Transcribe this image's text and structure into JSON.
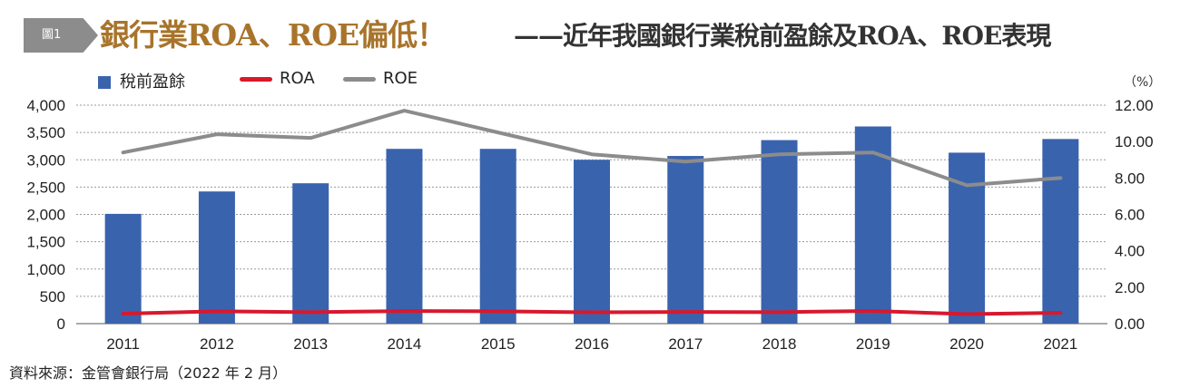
{
  "header": {
    "figure_label": "圖1",
    "title": "銀行業ROA、ROE偏低！",
    "subtitle": "——近年我國銀行業稅前盈餘及ROA、ROE表現"
  },
  "unit_right": "（%）",
  "source": "資料來源：金管會銀行局（2022 年 2 月）",
  "colors": {
    "bar": "#3a63ae",
    "roa": "#d8182e",
    "roe": "#8c8c8c",
    "title": "#a8742b",
    "badge": "#8c8c8c"
  },
  "chart_data": {
    "type": "bar",
    "categories": [
      "2011",
      "2012",
      "2013",
      "2014",
      "2015",
      "2016",
      "2017",
      "2018",
      "2019",
      "2020",
      "2021"
    ],
    "series": [
      {
        "name": "稅前盈餘",
        "type": "bar",
        "axis": "left",
        "values": [
          2010,
          2420,
          2570,
          3200,
          3200,
          3000,
          3070,
          3360,
          3610,
          3130,
          3380
        ]
      },
      {
        "name": "ROA",
        "type": "line",
        "axis": "right",
        "values": [
          0.55,
          0.68,
          0.63,
          0.69,
          0.68,
          0.62,
          0.64,
          0.63,
          0.7,
          0.52,
          0.6
        ]
      },
      {
        "name": "ROE",
        "type": "line",
        "axis": "right",
        "values": [
          9.4,
          10.4,
          10.2,
          11.7,
          10.5,
          9.3,
          8.9,
          9.3,
          9.4,
          7.6,
          8.0
        ]
      }
    ],
    "left_axis": {
      "ylim": [
        0,
        4000
      ],
      "ticks": [
        "0",
        "500",
        "1,000",
        "1,500",
        "2,000",
        "2,500",
        "3,000",
        "3,500",
        "4,000"
      ]
    },
    "right_axis": {
      "ylim": [
        0,
        12
      ],
      "ticks": [
        "0.00",
        "2.00",
        "4.00",
        "6.00",
        "8.00",
        "10.00",
        "12.00"
      ]
    },
    "grid": "horizontal-dotted",
    "legend_position": "top-left"
  }
}
